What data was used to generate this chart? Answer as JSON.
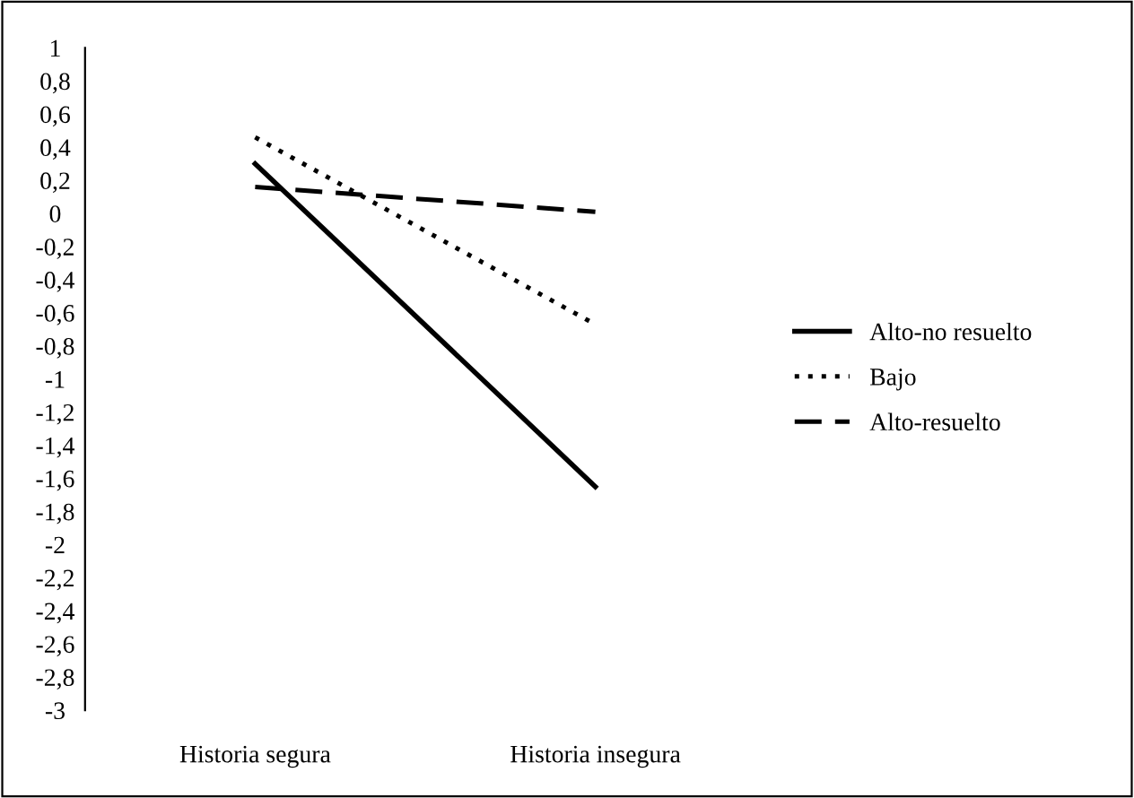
{
  "chart_data": {
    "type": "line",
    "categories": [
      "Historia segura",
      "Historia insegura"
    ],
    "series": [
      {
        "name": "Alto-no resuelto",
        "color": "#000000",
        "line_style": "solid",
        "values": [
          0.3,
          -1.65
        ]
      },
      {
        "name": "Bajo",
        "color": "#000000",
        "line_style": "dotted",
        "values": [
          0.46,
          -0.67
        ]
      },
      {
        "name": "Alto-resuelto",
        "color": "#000000",
        "line_style": "dashed",
        "values": [
          0.16,
          0.01
        ]
      }
    ],
    "ylim": [
      -3,
      1
    ],
    "yticks": [
      {
        "value": 1,
        "label": "1"
      },
      {
        "value": 0.8,
        "label": "0,8"
      },
      {
        "value": 0.6,
        "label": "0,6"
      },
      {
        "value": 0.4,
        "label": "0,4"
      },
      {
        "value": 0.2,
        "label": "0,2"
      },
      {
        "value": 0,
        "label": "0"
      },
      {
        "value": -0.2,
        "label": "-0,2"
      },
      {
        "value": -0.4,
        "label": "-0,4"
      },
      {
        "value": -0.6,
        "label": "-0,6"
      },
      {
        "value": -0.8,
        "label": "-0,8"
      },
      {
        "value": -1,
        "label": "-1"
      },
      {
        "value": -1.2,
        "label": "-1,2"
      },
      {
        "value": -1.4,
        "label": "-1,4"
      },
      {
        "value": -1.6,
        "label": "-1,6"
      },
      {
        "value": -1.8,
        "label": "-1,8"
      },
      {
        "value": -2,
        "label": "-2"
      },
      {
        "value": -2.2,
        "label": "-2,2"
      },
      {
        "value": -2.4,
        "label": "-2,4"
      },
      {
        "value": -2.6,
        "label": "-2,6"
      },
      {
        "value": -2.8,
        "label": "-2,8"
      },
      {
        "value": -3,
        "label": "-3"
      }
    ],
    "grid": false,
    "legend": "right",
    "marker": "none"
  }
}
